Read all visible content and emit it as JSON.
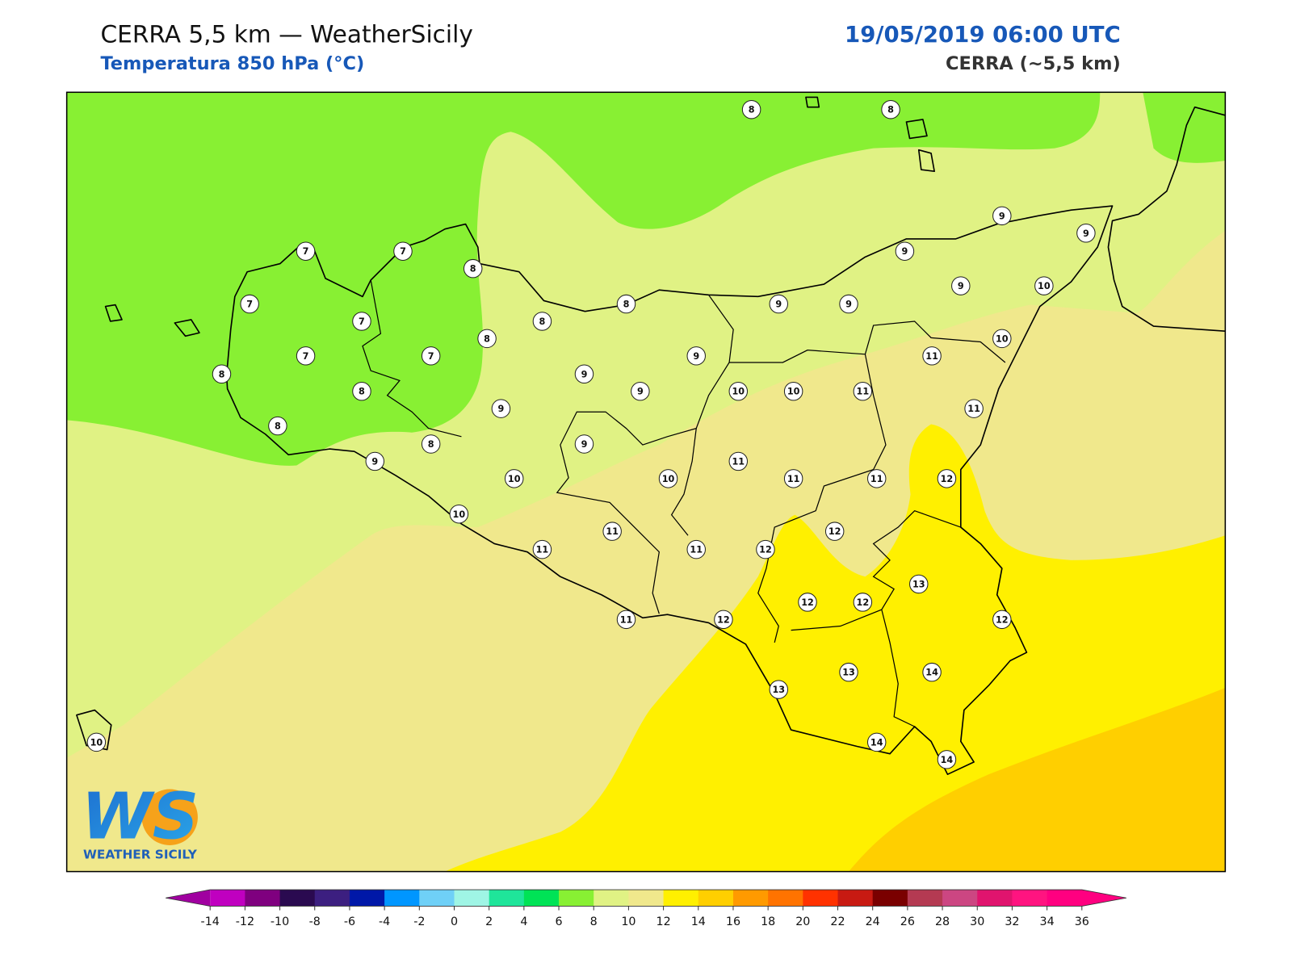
{
  "header": {
    "title": "CERRA 5,5 km — WeatherSicily",
    "subtitle": "Temperatura 850 hPa (°C)",
    "datetime": "19/05/2019 06:00 UTC",
    "model": "CERRA (~5,5 km)"
  },
  "stations": {
    "values": [
      8,
      8,
      9,
      9,
      9,
      7,
      7,
      8,
      7,
      7,
      8,
      8,
      9,
      9,
      9,
      10,
      8,
      10,
      7,
      7,
      8,
      8,
      9,
      9,
      9,
      10,
      10,
      11,
      11,
      11,
      9,
      8,
      8,
      9,
      9,
      10,
      10,
      11,
      11,
      11,
      12,
      10,
      11,
      12,
      11,
      11,
      12,
      13,
      12,
      12,
      12,
      11,
      12,
      13,
      13,
      14,
      14,
      14,
      10
    ]
  },
  "colorbar": {
    "ticks": [
      -14,
      -12,
      -10,
      -8,
      -6,
      -4,
      -2,
      0,
      2,
      4,
      6,
      8,
      10,
      12,
      14,
      16,
      18,
      20,
      22,
      24,
      26,
      28,
      30,
      32,
      34,
      36
    ],
    "colors": [
      "#c000c0",
      "#7f007f",
      "#2a0a50",
      "#3c1f80",
      "#0018a8",
      "#0096ff",
      "#6fd0f7",
      "#9ff5e5",
      "#1fe59a",
      "#00e356",
      "#88f033",
      "#e0f284",
      "#f0e88c",
      "#fff000",
      "#ffcf00",
      "#ff9a00",
      "#ff7300",
      "#ff3200",
      "#c81a12",
      "#7a0000",
      "#b43a52",
      "#cc4682",
      "#e0146e",
      "#ff1480",
      "#ff0080"
    ],
    "under_color": "#a000a0",
    "over_color": "#ff0080"
  },
  "logo": {
    "initials": "WS",
    "name": "WEATHER SICILY"
  }
}
